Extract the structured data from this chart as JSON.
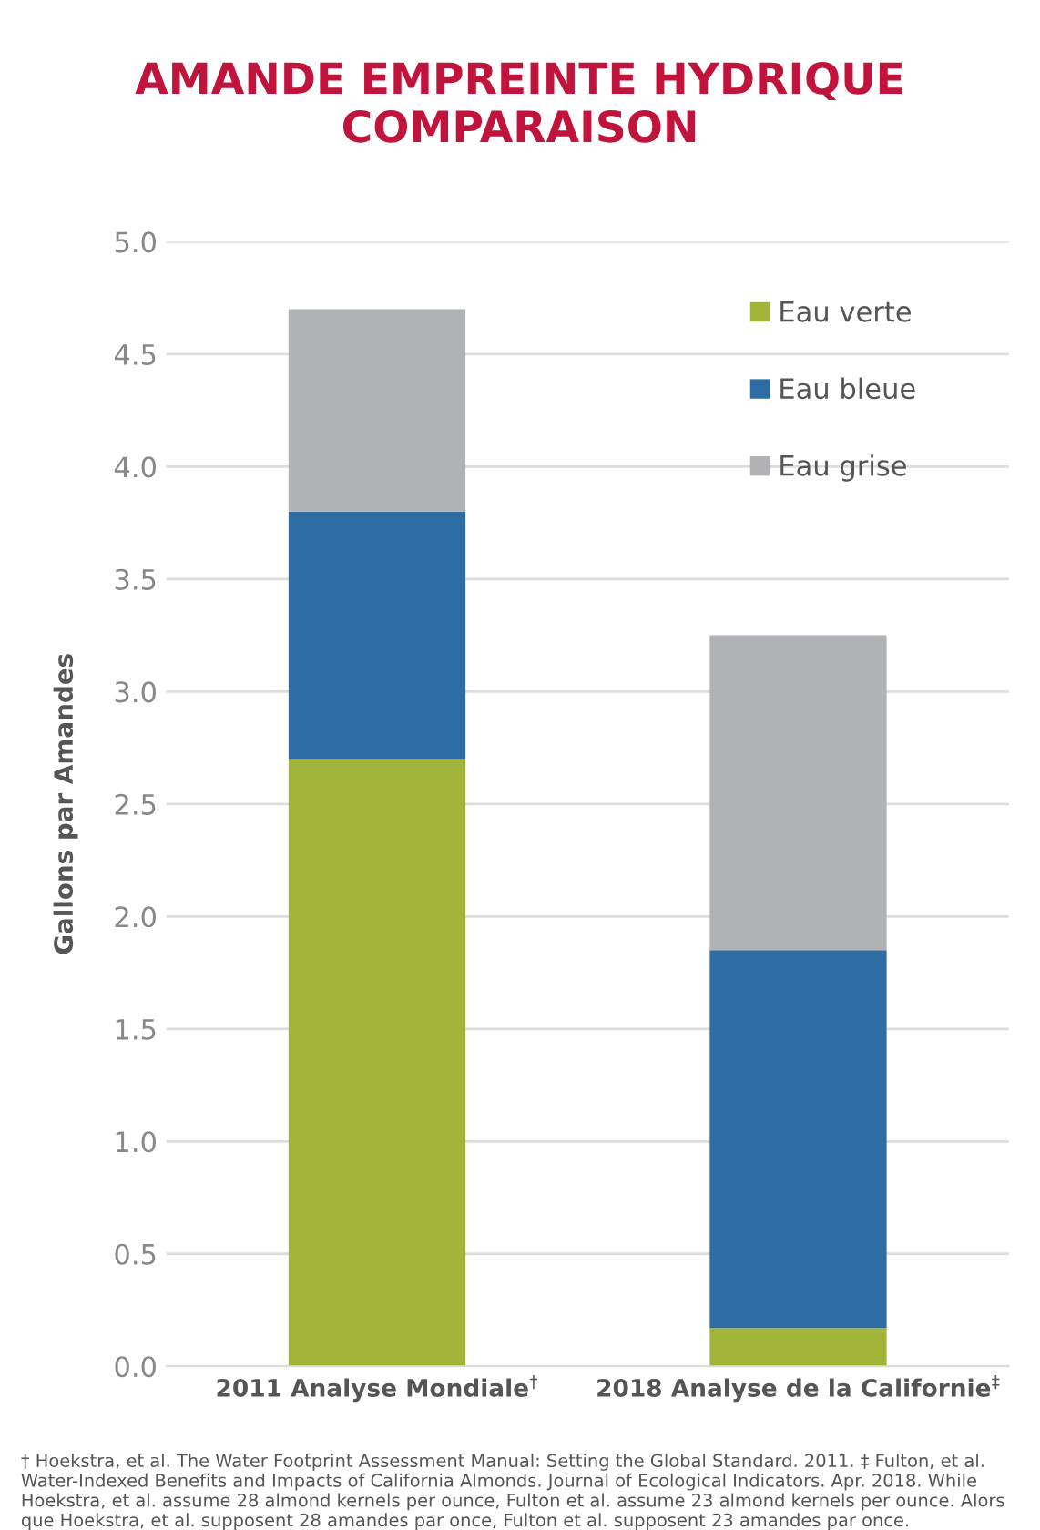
{
  "chart_data": {
    "type": "bar",
    "stacked": true,
    "title": "AMANDE EMPREINTE HYDRIQUE\nCOMPARAISON",
    "ylabel": "Gallons par Amandes",
    "categories": [
      "2011 Analyse Mondiale$^{†}$",
      "2018 Analyse de la Californie$^{‡}$"
    ],
    "series": [
      {
        "name": "Eau verte",
        "color": "#a3b43a",
        "values": [
          2.7,
          0.17
        ]
      },
      {
        "name": "Eau bleue",
        "color": "#2e6da3",
        "values": [
          1.1,
          1.68
        ]
      },
      {
        "name": "Eau grise",
        "color": "#b1b2b5",
        "values": [
          0.9,
          1.4
        ]
      }
    ],
    "ylim": [
      0,
      5.0
    ],
    "yticks": [
      {
        "value": 0,
        "label": "0.0"
      },
      {
        "value": 0.5,
        "label": "0.5"
      },
      {
        "value": 1.0,
        "label": "1.0"
      },
      {
        "value": 1.5,
        "label": "1.5"
      },
      {
        "value": 2.0,
        "label": "2.0"
      },
      {
        "value": 2.5,
        "label": "2.5"
      },
      {
        "value": 3.0,
        "label": "3.0"
      },
      {
        "value": 3.5,
        "label": "3.5"
      },
      {
        "value": 4.0,
        "label": "4.0"
      },
      {
        "value": 4.5,
        "label": "4.5"
      },
      {
        "value": 5.0,
        "label": "5.0"
      }
    ],
    "grid": "y",
    "legend": "top right",
    "annotations": [
      "† Hoekstra, et al. The Water Footprint Assessment Manual: Setting the Global Standard. 2011. ‡ Fulton, et al. Water-Indexed Benefits and Impacts of California Almonds. Journal of Ecological Indicators. Apr. 2018. While Hoekstra, et al. assume 28 almond kernels per ounce, Fulton et al. assume 23 almond kernels per ounce. Alors que Hoekstra, et al. supposent 28 amandes par once, Fulton et al. supposent 23 amandes par once."
    ]
  }
}
